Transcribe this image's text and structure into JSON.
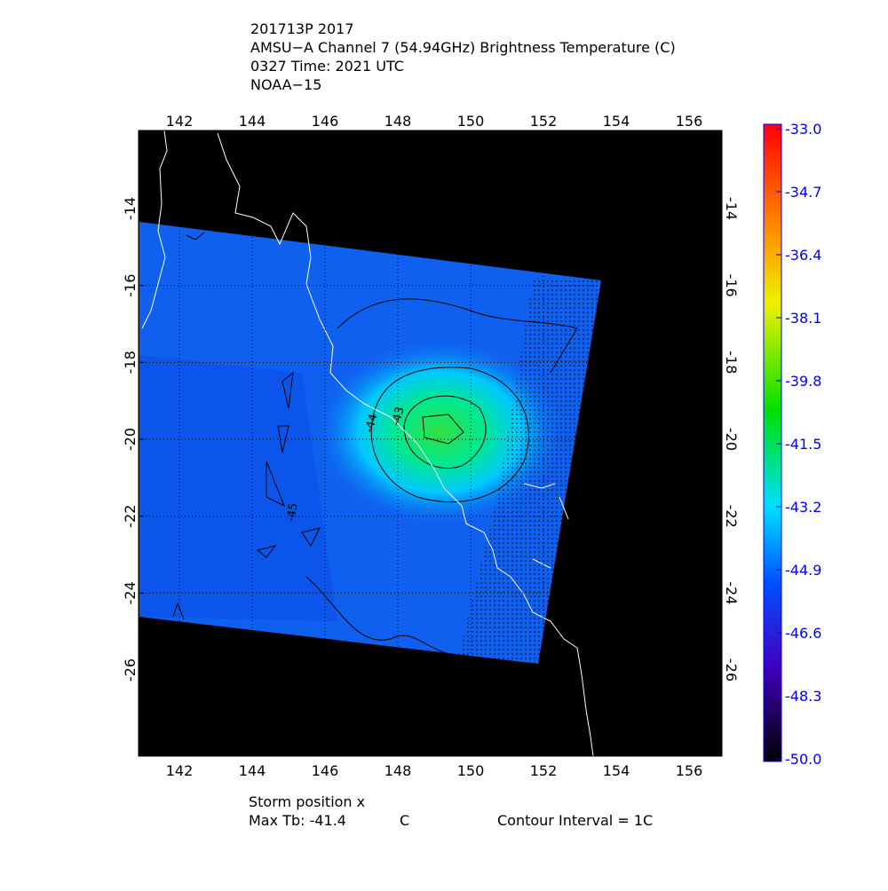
{
  "header": {
    "lines": [
      "201713P 2017",
      "AMSU−A Channel 7 (54.94GHz) Brightness Temperature (C)",
      "0327 Time: 2021 UTC",
      "NOAA−15"
    ]
  },
  "map": {
    "lon_ticks": [
      142,
      144,
      146,
      148,
      150,
      152,
      154,
      156
    ],
    "lat_ticks": [
      -14,
      -16,
      -18,
      -20,
      -22,
      -24,
      -26
    ],
    "contour_labels": [
      -44,
      -43,
      -45
    ]
  },
  "colorbar": {
    "labels": [
      "-33.0",
      "-34.7",
      "-36.4",
      "-38.1",
      "-39.8",
      "-41.5",
      "-43.2",
      "-44.9",
      "-46.6",
      "-48.3",
      "-50.0"
    ]
  },
  "footer": {
    "storm": "Storm position x",
    "max_tb": "Max Tb: -41.4",
    "unit": "C",
    "contour_interval": "Contour Interval = 1C"
  }
}
